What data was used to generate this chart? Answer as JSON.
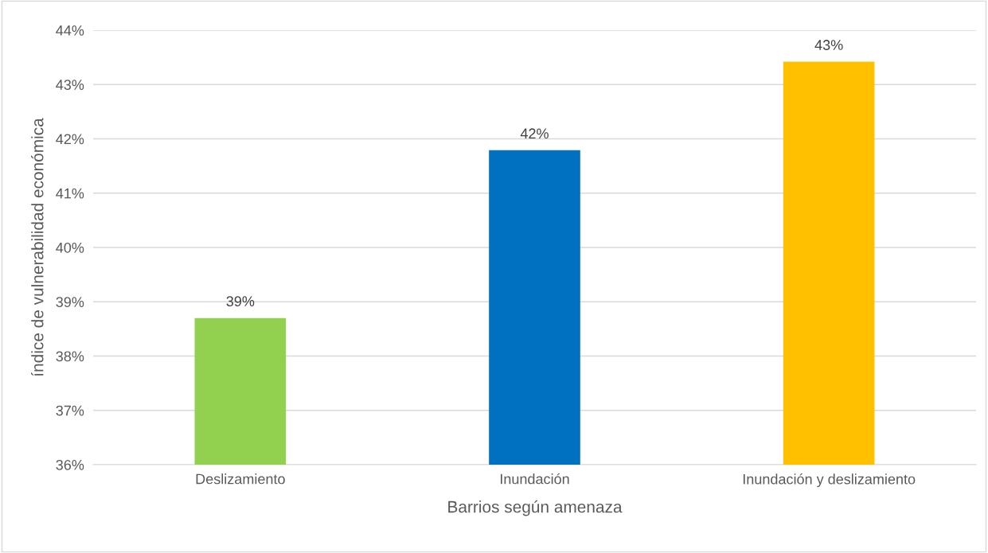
{
  "chart_data": {
    "type": "bar",
    "xlabel": "Barrios según amenaza",
    "ylabel": "índice de vulnerabilidad económica",
    "categories": [
      "Deslizamiento",
      "Inundación",
      "Inundación y deslizamiento"
    ],
    "values": [
      38.7,
      41.79,
      43.42
    ],
    "colors": [
      "#92d050",
      "#0070c0",
      "#ffc000"
    ],
    "value_labels": [
      "39%",
      "42%",
      "43%"
    ],
    "ylim": [
      36,
      44
    ],
    "yticks": [
      {
        "value": 36,
        "label": "36%"
      },
      {
        "value": 37,
        "label": "37%"
      },
      {
        "value": 38,
        "label": "38%"
      },
      {
        "value": 39,
        "label": "39%"
      },
      {
        "value": 40,
        "label": "40%"
      },
      {
        "value": 41,
        "label": "41%"
      },
      {
        "value": 42,
        "label": "42%"
      },
      {
        "value": 43,
        "label": "43%"
      },
      {
        "value": 44,
        "label": "44%"
      }
    ],
    "grid": "y",
    "legend": false
  }
}
